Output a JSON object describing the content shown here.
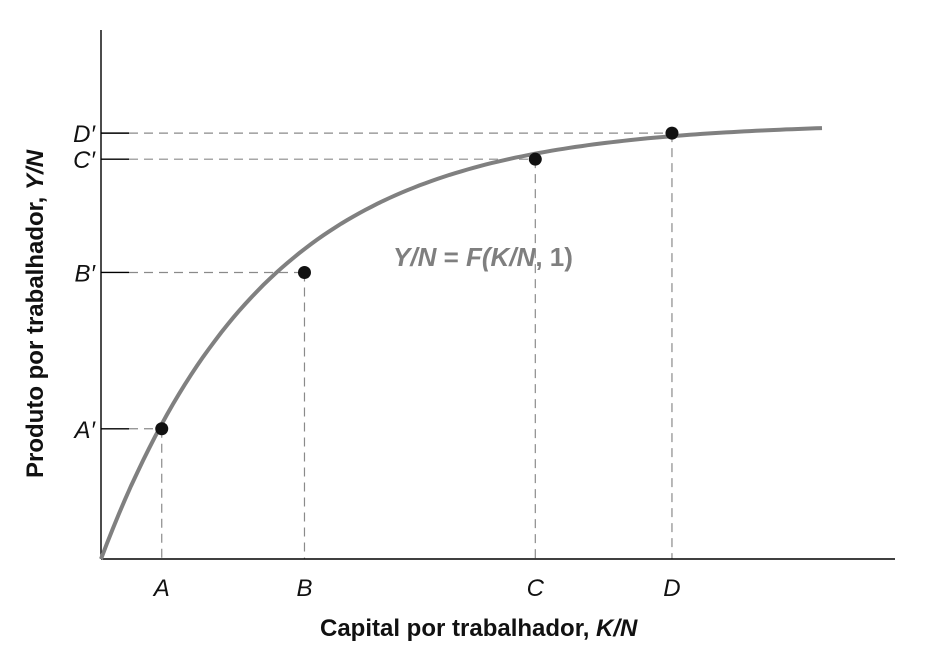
{
  "chart_data": {
    "type": "line",
    "xlabel": {
      "text": "Capital por trabalhador, ",
      "var": "K/N"
    },
    "ylabel": {
      "text": "Produto por trabalhador, ",
      "var": "Y/N"
    },
    "curve_label": {
      "lhs": "Y/N",
      "eq": " = ",
      "f": "F(K/N",
      "rest": ", 1)"
    },
    "x_categories": [
      "A",
      "B",
      "C",
      "D"
    ],
    "y_categories": [
      "A′",
      "B′",
      "C′",
      "D′"
    ],
    "points": [
      {
        "x_label": "A",
        "y_label": "A′",
        "x": 1,
        "y": 1.0
      },
      {
        "x_label": "B",
        "y_label": "B′",
        "x": 3.35,
        "y": 2.2
      },
      {
        "x_label": "C",
        "y_label": "C′",
        "x": 7.15,
        "y": 3.07
      },
      {
        "x_label": "D",
        "y_label": "D′",
        "x": 9.4,
        "y": 3.27
      }
    ],
    "xlim": [
      0,
      10
    ],
    "ylim": [
      0,
      4.2
    ],
    "grid": false,
    "guides": "dashed"
  }
}
